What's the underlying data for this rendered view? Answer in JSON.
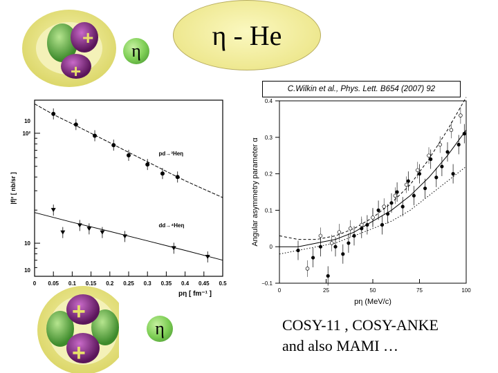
{
  "slide": {
    "title": "η - He",
    "eta_symbol": "η",
    "citation": "C.Wilkin et al., Phys. Lett. B654 (2007) 92",
    "caption_line1": "COSY-11 , COSY-ANKE",
    "caption_line2": "and also MAMI …"
  },
  "colors": {
    "oval_fill": "#f1ec96",
    "eta_green": "#7fcf56",
    "nucleus_yellow": "#ece988",
    "proton_purple": "#8c2f8c",
    "neutron_green": "#5ba843"
  },
  "chart_data": [
    {
      "type": "scatter",
      "title": "",
      "ylabel": "|f|² [ nb/sr ]",
      "xlabel": "pη [ fm⁻¹ ]",
      "xlim": [
        0,
        0.5
      ],
      "ylim": [
        5,
        200
      ],
      "yscale": "log",
      "x_ticks": [
        "0",
        "0.05",
        "0.1",
        "0.15",
        "0.2",
        "0.25",
        "0.3",
        "0.35",
        "0.4",
        "0.45",
        "0.5"
      ],
      "y_ticks": [
        "10²",
        "10",
        "10",
        "10"
      ],
      "series": [
        {
          "name": "pd→³Heη",
          "x": [
            0.05,
            0.11,
            0.16,
            0.21,
            0.25,
            0.3,
            0.34,
            0.38
          ],
          "y": [
            150,
            120,
            95,
            78,
            63,
            52,
            43,
            40
          ],
          "fit_x": [
            0.0,
            0.05,
            0.1,
            0.15,
            0.2,
            0.25,
            0.3,
            0.35,
            0.4,
            0.45,
            0.5
          ],
          "fit_y": [
            185,
            148,
            122,
            100,
            82,
            67,
            55,
            45,
            37,
            31,
            26
          ]
        },
        {
          "name": "dd→⁴Heη",
          "x": [
            0.05,
            0.075,
            0.12,
            0.145,
            0.18,
            0.24,
            0.37,
            0.46
          ],
          "y": [
            20,
            12.5,
            14.5,
            13.5,
            12.5,
            11.5,
            9,
            7.5
          ],
          "fit_x": [
            0.0,
            0.1,
            0.2,
            0.3,
            0.4,
            0.5
          ],
          "fit_y": [
            19,
            15.5,
            12.8,
            10.5,
            8.6,
            7.0
          ]
        }
      ]
    },
    {
      "type": "scatter",
      "title": "",
      "xlabel": "pη (MeV/c)",
      "ylabel": "Angular asymmetry parameter α",
      "xlim": [
        0,
        100
      ],
      "ylim": [
        -0.1,
        0.4
      ],
      "x_ticks": [
        "0",
        "25",
        "50",
        "75",
        "100"
      ],
      "y_ticks": [
        "−0.1",
        "0",
        "0.1",
        "0.2",
        "0.3",
        "0.4"
      ],
      "series": [
        {
          "name": "filled points",
          "x": [
            10,
            18,
            22,
            26,
            30,
            34,
            37,
            40,
            44,
            47,
            50,
            53,
            55,
            58,
            60,
            63,
            66,
            69,
            72,
            75,
            78,
            81,
            84,
            87,
            90,
            93,
            96,
            99
          ],
          "y": [
            -0.01,
            -0.03,
            0.0,
            -0.08,
            0.0,
            -0.02,
            0.01,
            0.03,
            0.05,
            0.06,
            0.08,
            0.1,
            0.06,
            0.09,
            0.12,
            0.15,
            0.11,
            0.18,
            0.14,
            0.2,
            0.16,
            0.24,
            0.19,
            0.22,
            0.26,
            0.2,
            0.28,
            0.31
          ]
        },
        {
          "name": "open points",
          "x": [
            15,
            22,
            28,
            32,
            38,
            44,
            50,
            56,
            62,
            68,
            74,
            80,
            86,
            92,
            97
          ],
          "y": [
            -0.06,
            0.03,
            0.01,
            0.04,
            0.05,
            0.06,
            0.08,
            0.11,
            0.14,
            0.17,
            0.21,
            0.25,
            0.28,
            0.32,
            0.36
          ]
        },
        {
          "name": "solid curve",
          "x": [
            0,
            10,
            20,
            30,
            40,
            50,
            60,
            70,
            80,
            90,
            100
          ],
          "y": [
            0.0,
            0.0,
            0.01,
            0.02,
            0.04,
            0.07,
            0.1,
            0.14,
            0.19,
            0.25,
            0.32
          ]
        },
        {
          "name": "dashed curve",
          "x": [
            0,
            10,
            20,
            30,
            40,
            50,
            60,
            70,
            80,
            90,
            100
          ],
          "y": [
            0.03,
            0.02,
            0.02,
            0.03,
            0.05,
            0.08,
            0.12,
            0.17,
            0.24,
            0.32,
            0.41
          ]
        },
        {
          "name": "dotted curve",
          "x": [
            0,
            10,
            20,
            30,
            40,
            50,
            60,
            70,
            80,
            90,
            100
          ],
          "y": [
            -0.02,
            -0.01,
            0.0,
            0.01,
            0.03,
            0.05,
            0.07,
            0.1,
            0.14,
            0.18,
            0.22
          ]
        }
      ]
    }
  ]
}
